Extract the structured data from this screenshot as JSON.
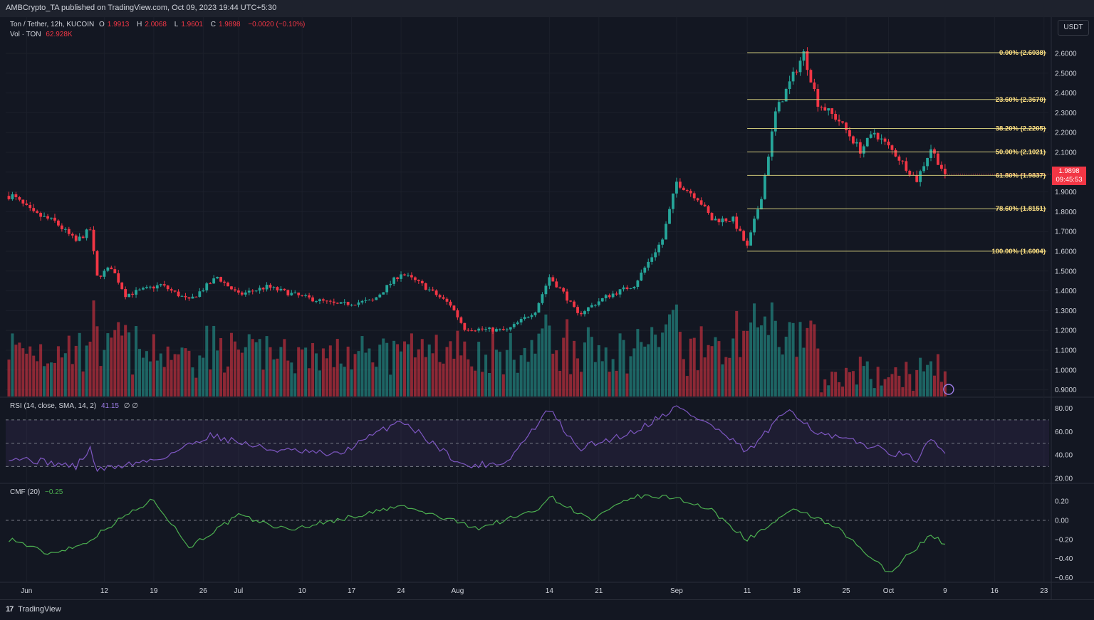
{
  "header": {
    "publisher_text": "AMBCrypto_TA published on TradingView.com, Oct 09, 2023 19:44 UTC+5:30"
  },
  "legend": {
    "pair": "Ton / Tether, 12h, KUCOIN",
    "o_label": "O",
    "o_value": "1.9913",
    "h_label": "H",
    "h_value": "2.0068",
    "l_label": "L",
    "l_value": "1.9601",
    "c_label": "C",
    "c_value": "1.9898",
    "change": "−0.0020 (−0.10%)",
    "vol_label": "Vol · TON",
    "vol_value": "62.928K"
  },
  "rsi_legend": {
    "label": "RSI (14, close, SMA, 14, 2)",
    "value": "41.15",
    "extra": "∅ ∅"
  },
  "cmf_legend": {
    "label": "CMF (20)",
    "value": "−0.25"
  },
  "currency_button": "USDT",
  "last_price": {
    "value": "1.9898",
    "countdown": "09:45:53"
  },
  "footer": {
    "brand": "TradingView",
    "logo": "17"
  },
  "colors": {
    "background": "#131722",
    "up": "#26a69a",
    "down": "#f23645",
    "fib": "#c9c377",
    "rsi": "#7e57c2",
    "cmf": "#4caf50"
  },
  "chart_data": [
    {
      "type": "candlestick",
      "title": "Ton / Tether, 12h, KUCOIN",
      "ylim": [
        0.87,
        2.66
      ],
      "yticks": [
        "2.6000",
        "2.5000",
        "2.4000",
        "2.3000",
        "2.2000",
        "2.1000",
        "2.0000",
        "1.9000",
        "1.8000",
        "1.7000",
        "1.6000",
        "1.5000",
        "1.4000",
        "1.3000",
        "1.2000",
        "1.1000",
        "1.0000",
        "0.9000"
      ],
      "x_labels": [
        "Jun",
        "12",
        "19",
        "26",
        "Jul",
        "10",
        "17",
        "24",
        "Aug",
        "14",
        "21",
        "Sep",
        "11",
        "18",
        "25",
        "Oct",
        "9",
        "16",
        "23"
      ],
      "close_path_daily": [
        {
          "date": "2023-05-30",
          "close": 1.88
        },
        {
          "date": "2023-06-02",
          "close": 1.79
        },
        {
          "date": "2023-06-05",
          "close": 1.75
        },
        {
          "date": "2023-06-08",
          "close": 1.65
        },
        {
          "date": "2023-06-10",
          "close": 1.71
        },
        {
          "date": "2023-06-11",
          "close": 1.47
        },
        {
          "date": "2023-06-13",
          "close": 1.52
        },
        {
          "date": "2023-06-15",
          "close": 1.38
        },
        {
          "date": "2023-06-20",
          "close": 1.43
        },
        {
          "date": "2023-06-24",
          "close": 1.35
        },
        {
          "date": "2023-06-28",
          "close": 1.47
        },
        {
          "date": "2023-07-01",
          "close": 1.38
        },
        {
          "date": "2023-07-05",
          "close": 1.42
        },
        {
          "date": "2023-07-10",
          "close": 1.37
        },
        {
          "date": "2023-07-15",
          "close": 1.33
        },
        {
          "date": "2023-07-20",
          "close": 1.35
        },
        {
          "date": "2023-07-24",
          "close": 1.49
        },
        {
          "date": "2023-07-27",
          "close": 1.43
        },
        {
          "date": "2023-07-31",
          "close": 1.33
        },
        {
          "date": "2023-08-02",
          "close": 1.21
        },
        {
          "date": "2023-08-08",
          "close": 1.2
        },
        {
          "date": "2023-08-12",
          "close": 1.3
        },
        {
          "date": "2023-08-14",
          "close": 1.47
        },
        {
          "date": "2023-08-16",
          "close": 1.39
        },
        {
          "date": "2023-08-18",
          "close": 1.28
        },
        {
          "date": "2023-08-22",
          "close": 1.37
        },
        {
          "date": "2023-08-26",
          "close": 1.43
        },
        {
          "date": "2023-08-30",
          "close": 1.66
        },
        {
          "date": "2023-09-01",
          "close": 1.95
        },
        {
          "date": "2023-09-04",
          "close": 1.87
        },
        {
          "date": "2023-09-06",
          "close": 1.76
        },
        {
          "date": "2023-09-09",
          "close": 1.76
        },
        {
          "date": "2023-09-11",
          "close": 1.62
        },
        {
          "date": "2023-09-13",
          "close": 1.88
        },
        {
          "date": "2023-09-15",
          "close": 2.3
        },
        {
          "date": "2023-09-17",
          "close": 2.45
        },
        {
          "date": "2023-09-19",
          "close": 2.6
        },
        {
          "date": "2023-09-21",
          "close": 2.35
        },
        {
          "date": "2023-09-24",
          "close": 2.26
        },
        {
          "date": "2023-09-27",
          "close": 2.11
        },
        {
          "date": "2023-09-29",
          "close": 2.2
        },
        {
          "date": "2023-10-02",
          "close": 2.09
        },
        {
          "date": "2023-10-05",
          "close": 1.96
        },
        {
          "date": "2023-10-07",
          "close": 2.12
        },
        {
          "date": "2023-10-09",
          "close": 1.99
        }
      ],
      "fibonacci": [
        {
          "label": "0.00% (2.6038)",
          "value": 2.6038
        },
        {
          "label": "23.60% (2.3670)",
          "value": 2.367
        },
        {
          "label": "38.20% (2.2205)",
          "value": 2.2205
        },
        {
          "label": "50.00% (2.1021)",
          "value": 2.1021
        },
        {
          "label": "61.80% (1.9837)",
          "value": 1.9837
        },
        {
          "label": "78.60% (1.8151)",
          "value": 1.8151
        },
        {
          "label": "100.00% (1.6004)",
          "value": 1.6004
        }
      ],
      "volume_last": "62.928K"
    },
    {
      "type": "line",
      "title": "RSI (14, close, SMA, 14, 2)",
      "ylim": [
        16,
        86
      ],
      "yticks": [
        "80.00",
        "60.00",
        "40.00",
        "20.00"
      ],
      "bands": [
        30,
        50,
        70
      ],
      "path_daily": [
        {
          "date": "2023-05-30",
          "value": 38
        },
        {
          "date": "2023-06-08",
          "value": 30
        },
        {
          "date": "2023-06-10",
          "value": 45
        },
        {
          "date": "2023-06-11",
          "value": 27
        },
        {
          "date": "2023-06-20",
          "value": 37
        },
        {
          "date": "2023-06-27",
          "value": 57
        },
        {
          "date": "2023-07-05",
          "value": 45
        },
        {
          "date": "2023-07-15",
          "value": 40
        },
        {
          "date": "2023-07-24",
          "value": 70
        },
        {
          "date": "2023-08-02",
          "value": 30
        },
        {
          "date": "2023-08-08",
          "value": 34
        },
        {
          "date": "2023-08-14",
          "value": 79
        },
        {
          "date": "2023-08-18",
          "value": 45
        },
        {
          "date": "2023-08-26",
          "value": 60
        },
        {
          "date": "2023-09-01",
          "value": 81
        },
        {
          "date": "2023-09-06",
          "value": 65
        },
        {
          "date": "2023-09-11",
          "value": 42
        },
        {
          "date": "2023-09-17",
          "value": 80
        },
        {
          "date": "2023-09-21",
          "value": 58
        },
        {
          "date": "2023-09-27",
          "value": 50
        },
        {
          "date": "2023-10-05",
          "value": 36
        },
        {
          "date": "2023-10-07",
          "value": 52
        },
        {
          "date": "2023-10-09",
          "value": 41.15
        }
      ],
      "last_value": 41.15
    },
    {
      "type": "line",
      "title": "CMF (20)",
      "ylim": [
        -0.66,
        0.3
      ],
      "yticks": [
        "0.20",
        "0.00",
        "−0.20",
        "−0.40",
        "−0.60"
      ],
      "zero_line": 0,
      "path_daily": [
        {
          "date": "2023-05-30",
          "value": -0.2
        },
        {
          "date": "2023-06-04",
          "value": -0.35
        },
        {
          "date": "2023-06-09",
          "value": -0.25
        },
        {
          "date": "2023-06-15",
          "value": 0.05
        },
        {
          "date": "2023-06-19",
          "value": 0.22
        },
        {
          "date": "2023-06-24",
          "value": -0.28
        },
        {
          "date": "2023-07-01",
          "value": 0.05
        },
        {
          "date": "2023-07-08",
          "value": -0.1
        },
        {
          "date": "2023-07-18",
          "value": 0.05
        },
        {
          "date": "2023-07-24",
          "value": 0.15
        },
        {
          "date": "2023-08-04",
          "value": -0.08
        },
        {
          "date": "2023-08-12",
          "value": 0.1
        },
        {
          "date": "2023-08-14",
          "value": 0.25
        },
        {
          "date": "2023-08-20",
          "value": 0.0
        },
        {
          "date": "2023-08-26",
          "value": 0.25
        },
        {
          "date": "2023-09-01",
          "value": 0.24
        },
        {
          "date": "2023-09-06",
          "value": 0.1
        },
        {
          "date": "2023-09-11",
          "value": -0.2
        },
        {
          "date": "2023-09-18",
          "value": 0.12
        },
        {
          "date": "2023-09-24",
          "value": -0.1
        },
        {
          "date": "2023-10-01",
          "value": -0.55
        },
        {
          "date": "2023-10-07",
          "value": -0.15
        },
        {
          "date": "2023-10-09",
          "value": -0.25
        }
      ],
      "last_value": -0.25
    }
  ]
}
